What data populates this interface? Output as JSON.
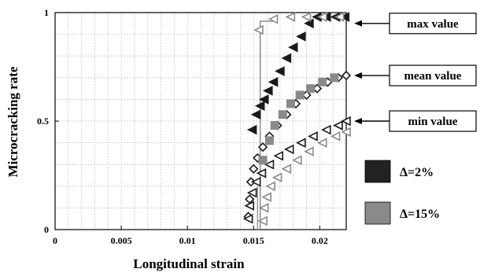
{
  "chart_data": {
    "type": "scatter",
    "title": "",
    "xlabel": "Longitudinal strain",
    "ylabel": "Microcracking rate",
    "xlim": [
      0,
      0.022
    ],
    "ylim": [
      0,
      1
    ],
    "x_ticks": [
      {
        "value": 0,
        "label": "0"
      },
      {
        "value": 0.005,
        "label": "0.005"
      },
      {
        "value": 0.01,
        "label": "0.01"
      },
      {
        "value": 0.015,
        "label": "0.015"
      },
      {
        "value": 0.02,
        "label": "0.02"
      }
    ],
    "y_ticks": [
      {
        "value": 0,
        "label": "0"
      },
      {
        "value": 0.5,
        "label": "0.5"
      },
      {
        "value": 1,
        "label": "1"
      }
    ],
    "grid": true,
    "legend_position": "right",
    "legend": [
      {
        "label": "Δ=2%",
        "color": "#222222"
      },
      {
        "label": "Δ=15%",
        "color": "#8a8a8a"
      }
    ],
    "annotations": [
      {
        "label": "max value",
        "y": 0.95
      },
      {
        "label": "mean value",
        "y": 0.71
      },
      {
        "label": "min value",
        "y": 0.5
      }
    ],
    "series": [
      {
        "group": "Δ=2%",
        "marker": "triangle-left-filled",
        "color": "#1a1a1a",
        "points": [
          [
            0.0149,
            0.46
          ],
          [
            0.0152,
            0.53
          ],
          [
            0.0155,
            0.57
          ],
          [
            0.0158,
            0.6
          ],
          [
            0.0161,
            0.64
          ],
          [
            0.0165,
            0.68
          ],
          [
            0.017,
            0.73
          ],
          [
            0.0175,
            0.79
          ],
          [
            0.018,
            0.84
          ],
          [
            0.0186,
            0.89
          ],
          [
            0.0192,
            0.95
          ],
          [
            0.0198,
            0.98
          ],
          [
            0.0205,
            0.98
          ],
          [
            0.0212,
            0.98
          ],
          [
            0.0219,
            0.98
          ]
        ]
      },
      {
        "group": "Δ=2%",
        "marker": "diamond-open",
        "color": "#1a1a1a",
        "points": [
          [
            0.0146,
            0.06
          ],
          [
            0.0147,
            0.14
          ],
          [
            0.0148,
            0.22
          ],
          [
            0.015,
            0.28
          ],
          [
            0.0153,
            0.33
          ],
          [
            0.0157,
            0.38
          ],
          [
            0.0162,
            0.43
          ],
          [
            0.0168,
            0.48
          ],
          [
            0.0175,
            0.53
          ],
          [
            0.0182,
            0.58
          ],
          [
            0.019,
            0.62
          ],
          [
            0.0198,
            0.65
          ],
          [
            0.0206,
            0.68
          ],
          [
            0.0214,
            0.7
          ],
          [
            0.022,
            0.71
          ]
        ]
      },
      {
        "group": "Δ=2%",
        "marker": "triangle-left-open",
        "color": "#1a1a1a",
        "points": [
          [
            0.0146,
            0.05
          ],
          [
            0.0147,
            0.11
          ],
          [
            0.0149,
            0.17
          ],
          [
            0.0152,
            0.22
          ],
          [
            0.0156,
            0.26
          ],
          [
            0.0162,
            0.3
          ],
          [
            0.0169,
            0.34
          ],
          [
            0.0177,
            0.37
          ],
          [
            0.0186,
            0.4
          ],
          [
            0.0195,
            0.43
          ],
          [
            0.0205,
            0.46
          ],
          [
            0.0214,
            0.48
          ],
          [
            0.022,
            0.5
          ]
        ]
      },
      {
        "group": "Δ=15%",
        "marker": "triangle-left-open",
        "color": "#8a8a8a",
        "points": [
          [
            0.0154,
            0.92
          ],
          [
            0.0165,
            0.97
          ],
          [
            0.0178,
            0.98
          ],
          [
            0.019,
            0.98
          ],
          [
            0.0202,
            0.98
          ],
          [
            0.0215,
            0.98
          ]
        ]
      },
      {
        "group": "Δ=15%",
        "marker": "square-filled",
        "color": "#8a8a8a",
        "points": [
          [
            0.0157,
            0.32
          ],
          [
            0.0162,
            0.41
          ],
          [
            0.0166,
            0.48
          ],
          [
            0.0172,
            0.53
          ],
          [
            0.0178,
            0.58
          ],
          [
            0.0185,
            0.62
          ],
          [
            0.0193,
            0.65
          ],
          [
            0.0202,
            0.68
          ],
          [
            0.0211,
            0.7
          ]
        ]
      },
      {
        "group": "Δ=15%",
        "marker": "triangle-left-open",
        "color": "#8a8a8a",
        "points": [
          [
            0.0157,
            0.04
          ],
          [
            0.0158,
            0.1
          ],
          [
            0.016,
            0.15
          ],
          [
            0.0163,
            0.2
          ],
          [
            0.0168,
            0.24
          ],
          [
            0.0175,
            0.28
          ],
          [
            0.0183,
            0.32
          ],
          [
            0.0192,
            0.36
          ],
          [
            0.0202,
            0.4
          ],
          [
            0.0212,
            0.43
          ],
          [
            0.022,
            0.45
          ]
        ]
      }
    ],
    "step_lines": [
      {
        "color": "#8a8a8a",
        "points": [
          [
            0.0155,
            0
          ],
          [
            0.0155,
            0.96
          ],
          [
            0.0167,
            0.96
          ],
          [
            0.0167,
            0.98
          ]
        ]
      },
      {
        "color": "#999999",
        "points": [
          [
            0.0153,
            0
          ],
          [
            0.0153,
            0.2
          ]
        ]
      }
    ]
  }
}
